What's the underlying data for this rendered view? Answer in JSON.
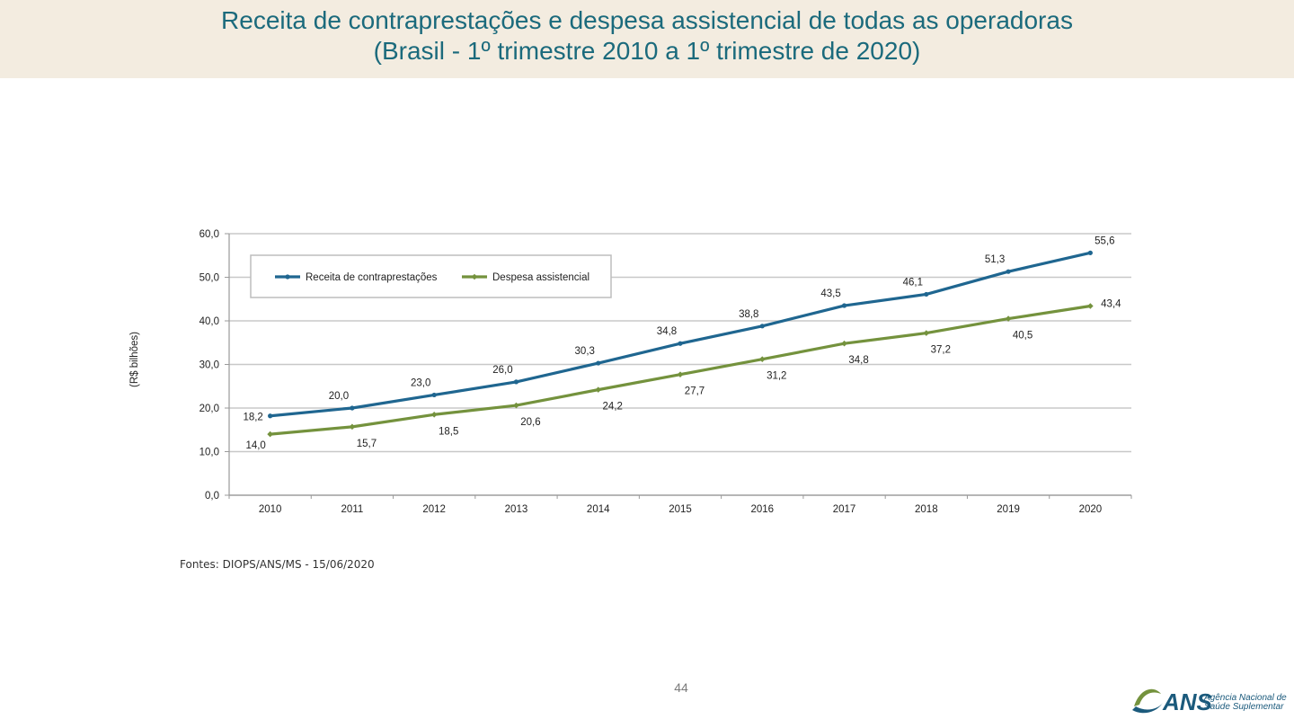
{
  "header": {
    "title_line1": "Receita de contraprestações e despesa assistencial de todas as operadoras",
    "title_line2": "(Brasil - 1º trimestre 2010 a 1º trimestre de 2020)"
  },
  "chart_data": {
    "type": "line",
    "ylabel": "(R$ bilhões)",
    "xlabel": "",
    "ylim": [
      0,
      60
    ],
    "yticks": [
      "0,0",
      "10,0",
      "20,0",
      "30,0",
      "40,0",
      "50,0",
      "60,0"
    ],
    "ytick_values": [
      0,
      10,
      20,
      30,
      40,
      50,
      60
    ],
    "categories": [
      "2010",
      "2011",
      "2012",
      "2013",
      "2014",
      "2015",
      "2016",
      "2017",
      "2018",
      "2019",
      "2020"
    ],
    "grid": true,
    "legend_position": "top-left",
    "series": [
      {
        "name": "Receita de contraprestações",
        "color": "#1f6690",
        "values": [
          18.2,
          20.0,
          23.0,
          26.0,
          30.3,
          34.8,
          38.8,
          43.5,
          46.1,
          51.3,
          55.6
        ],
        "labels": [
          "18,2",
          "20,0",
          "23,0",
          "26,0",
          "30,3",
          "34,8",
          "38,8",
          "43,5",
          "46,1",
          "51,3",
          "55,6"
        ]
      },
      {
        "name": "Despesa assistencial",
        "color": "#74923d",
        "values": [
          14.0,
          15.7,
          18.5,
          20.6,
          24.2,
          27.7,
          31.2,
          34.8,
          37.2,
          40.5,
          43.4
        ],
        "labels": [
          "14,0",
          "15,7",
          "18,5",
          "20,6",
          "24,2",
          "27,7",
          "31,2",
          "34,8",
          "37,2",
          "40,5",
          "43,4"
        ]
      }
    ]
  },
  "footer": {
    "source": "Fontes: DIOPS/ANS/MS - 15/06/2020",
    "page_number": "44",
    "logo_text": "ANS",
    "logo_line1": "Agência Nacional de",
    "logo_line2": "Saúde Suplementar"
  }
}
